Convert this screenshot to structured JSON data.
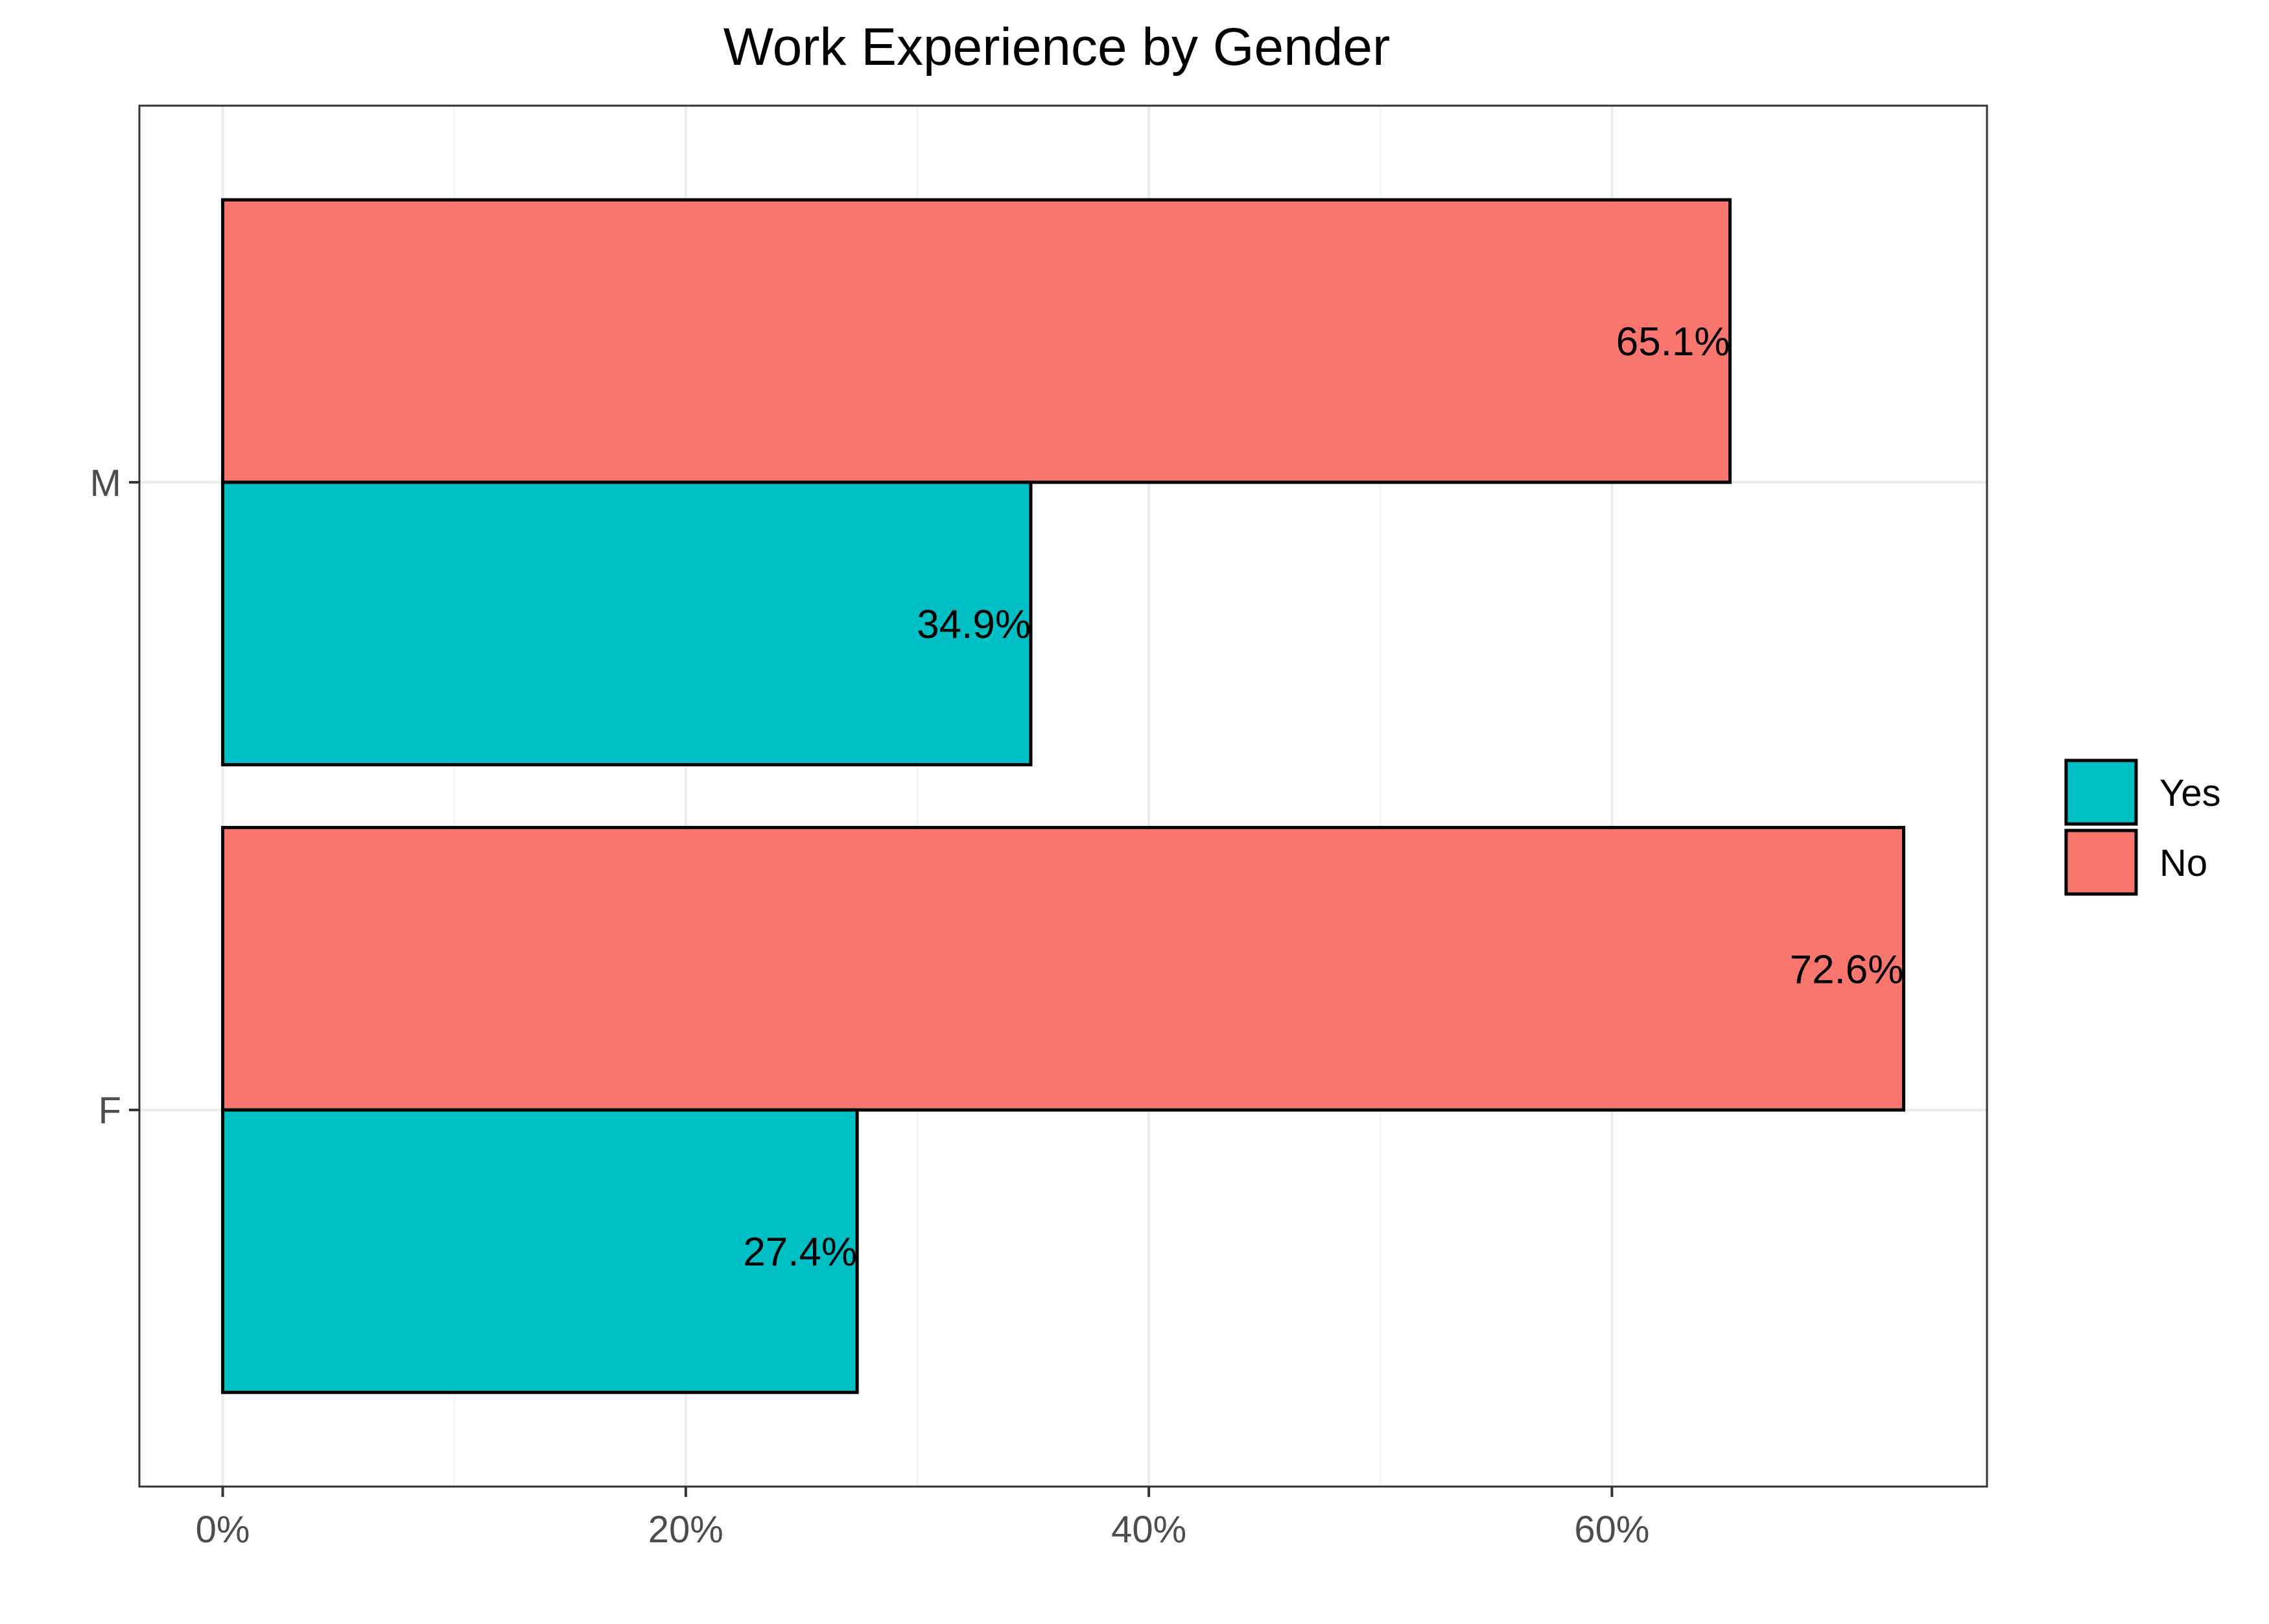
{
  "chart_data": {
    "type": "bar",
    "orientation": "horizontal",
    "title": "Work Experience by Gender",
    "xlabel": "",
    "ylabel": "",
    "categories": [
      "M",
      "F"
    ],
    "series": [
      {
        "name": "No",
        "color": "#F8766D",
        "values": [
          65.1,
          72.6
        ],
        "labels": [
          "65.1%",
          "72.6%"
        ]
      },
      {
        "name": "Yes",
        "color": "#00BFC4",
        "values": [
          34.9,
          27.4
        ],
        "labels": [
          "34.9%",
          "27.4%"
        ]
      }
    ],
    "xlim": [
      -3.6,
      76.2
    ],
    "x_ticks": [
      0,
      20,
      40,
      60
    ],
    "x_tick_labels": [
      "0%",
      "20%",
      "40%",
      "60%"
    ],
    "legend": {
      "position": "right",
      "entries": [
        {
          "label": "Yes",
          "color": "#00BFC4"
        },
        {
          "label": "No",
          "color": "#F8766D"
        }
      ]
    },
    "grid": true,
    "theme": "bw"
  }
}
